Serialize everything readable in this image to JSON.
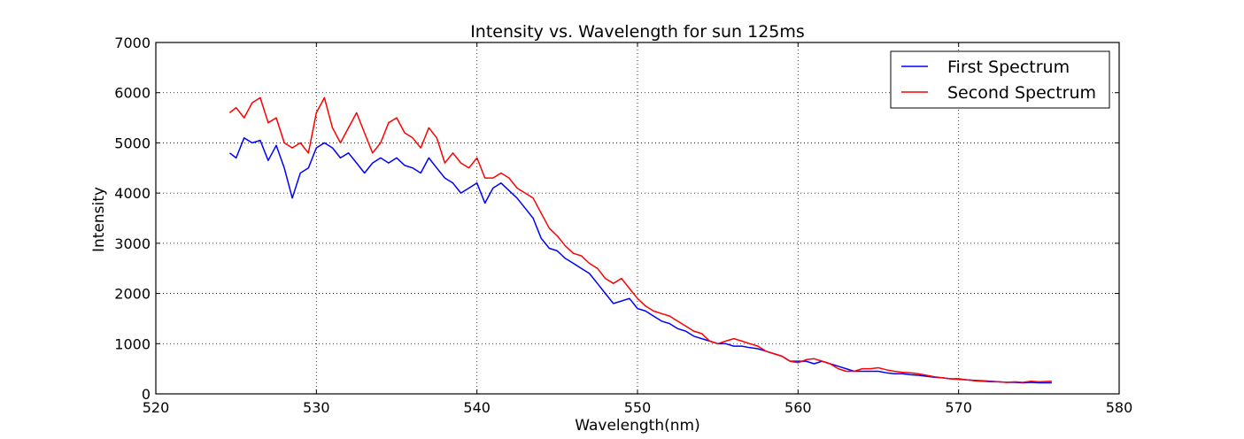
{
  "chart_data": {
    "type": "line",
    "title": "Intensity vs. Wavelength for sun 125ms",
    "xlabel": "Wavelength(nm)",
    "ylabel": "Intensity",
    "xlim": [
      520,
      580
    ],
    "ylim": [
      0,
      7000
    ],
    "xticks": [
      520,
      530,
      540,
      550,
      560,
      570,
      580
    ],
    "yticks": [
      0,
      1000,
      2000,
      3000,
      4000,
      5000,
      6000,
      7000
    ],
    "grid": true,
    "legend_position": "top-right",
    "series": [
      {
        "name": "First Spectrum",
        "color": "#0000ff",
        "x": [
          524.6,
          525.0,
          525.5,
          526.0,
          526.5,
          527.0,
          527.5,
          528.0,
          528.5,
          529.0,
          529.5,
          530.0,
          530.5,
          531.0,
          531.5,
          532.0,
          532.5,
          533.0,
          533.5,
          534.0,
          534.5,
          535.0,
          535.5,
          536.0,
          536.5,
          537.0,
          537.5,
          538.0,
          538.5,
          539.0,
          539.5,
          540.0,
          540.5,
          541.0,
          541.5,
          542.0,
          542.5,
          543.0,
          543.5,
          544.0,
          544.5,
          545.0,
          545.5,
          546.0,
          546.5,
          547.0,
          547.5,
          548.0,
          548.5,
          549.0,
          549.5,
          550.0,
          550.5,
          551.0,
          551.5,
          552.0,
          552.5,
          553.0,
          553.5,
          554.0,
          554.5,
          555.0,
          555.5,
          556.0,
          556.5,
          557.0,
          557.5,
          558.0,
          558.5,
          559.0,
          559.5,
          560.0,
          560.5,
          561.0,
          561.5,
          562.0,
          562.5,
          563.0,
          563.5,
          564.0,
          564.5,
          565.0,
          565.5,
          566.0,
          566.5,
          567.0,
          567.5,
          568.0,
          568.5,
          569.0,
          569.5,
          570.0,
          570.5,
          571.0,
          571.5,
          572.0,
          572.5,
          573.0,
          573.5,
          574.0,
          574.5,
          575.0,
          575.8
        ],
        "y": [
          4800,
          4700,
          5100,
          5000,
          5050,
          4650,
          4950,
          4500,
          3900,
          4400,
          4500,
          4900,
          5000,
          4900,
          4700,
          4800,
          4600,
          4400,
          4600,
          4700,
          4600,
          4700,
          4550,
          4500,
          4400,
          4700,
          4500,
          4300,
          4200,
          4000,
          4100,
          4200,
          3800,
          4100,
          4200,
          4050,
          3900,
          3700,
          3500,
          3100,
          2900,
          2850,
          2700,
          2600,
          2500,
          2400,
          2200,
          2000,
          1800,
          1850,
          1900,
          1700,
          1650,
          1550,
          1450,
          1400,
          1300,
          1250,
          1150,
          1100,
          1050,
          1000,
          1000,
          950,
          950,
          920,
          900,
          850,
          800,
          750,
          650,
          650,
          650,
          600,
          650,
          600,
          550,
          500,
          450,
          450,
          450,
          450,
          420,
          400,
          400,
          380,
          370,
          350,
          330,
          320,
          300,
          300,
          280,
          270,
          260,
          250,
          240,
          230,
          230,
          220,
          230,
          220,
          220
        ]
      },
      {
        "name": "Second Spectrum",
        "color": "#ff0000",
        "x": [
          524.6,
          525.0,
          525.5,
          526.0,
          526.5,
          527.0,
          527.5,
          528.0,
          528.5,
          529.0,
          529.5,
          530.0,
          530.5,
          531.0,
          531.5,
          532.0,
          532.5,
          533.0,
          533.5,
          534.0,
          534.5,
          535.0,
          535.5,
          536.0,
          536.5,
          537.0,
          537.5,
          538.0,
          538.5,
          539.0,
          539.5,
          540.0,
          540.5,
          541.0,
          541.5,
          542.0,
          542.5,
          543.0,
          543.5,
          544.0,
          544.5,
          545.0,
          545.5,
          546.0,
          546.5,
          547.0,
          547.5,
          548.0,
          548.5,
          549.0,
          549.5,
          550.0,
          550.5,
          551.0,
          551.5,
          552.0,
          552.5,
          553.0,
          553.5,
          554.0,
          554.5,
          555.0,
          555.5,
          556.0,
          556.5,
          557.0,
          557.5,
          558.0,
          558.5,
          559.0,
          559.5,
          560.0,
          560.5,
          561.0,
          561.5,
          562.0,
          562.5,
          563.0,
          563.5,
          564.0,
          564.5,
          565.0,
          565.5,
          566.0,
          566.5,
          567.0,
          567.5,
          568.0,
          568.5,
          569.0,
          569.5,
          570.0,
          570.5,
          571.0,
          571.5,
          572.0,
          572.5,
          573.0,
          573.5,
          574.0,
          574.5,
          575.0,
          575.8
        ],
        "y": [
          5600,
          5700,
          5500,
          5800,
          5900,
          5400,
          5500,
          5000,
          4900,
          5000,
          4800,
          5600,
          5900,
          5300,
          5000,
          5300,
          5600,
          5200,
          4800,
          5000,
          5400,
          5500,
          5200,
          5100,
          4900,
          5300,
          5100,
          4600,
          4800,
          4600,
          4500,
          4700,
          4300,
          4300,
          4400,
          4300,
          4100,
          4000,
          3900,
          3600,
          3300,
          3150,
          2950,
          2800,
          2750,
          2600,
          2500,
          2300,
          2200,
          2300,
          2100,
          1900,
          1750,
          1650,
          1600,
          1550,
          1450,
          1350,
          1250,
          1200,
          1050,
          1000,
          1050,
          1100,
          1050,
          1000,
          950,
          850,
          800,
          750,
          650,
          620,
          680,
          700,
          650,
          600,
          500,
          450,
          450,
          500,
          500,
          520,
          480,
          450,
          430,
          420,
          400,
          370,
          340,
          320,
          300,
          290,
          280,
          260,
          250,
          240,
          240,
          230,
          240,
          230,
          250,
          240,
          250
        ]
      }
    ]
  }
}
